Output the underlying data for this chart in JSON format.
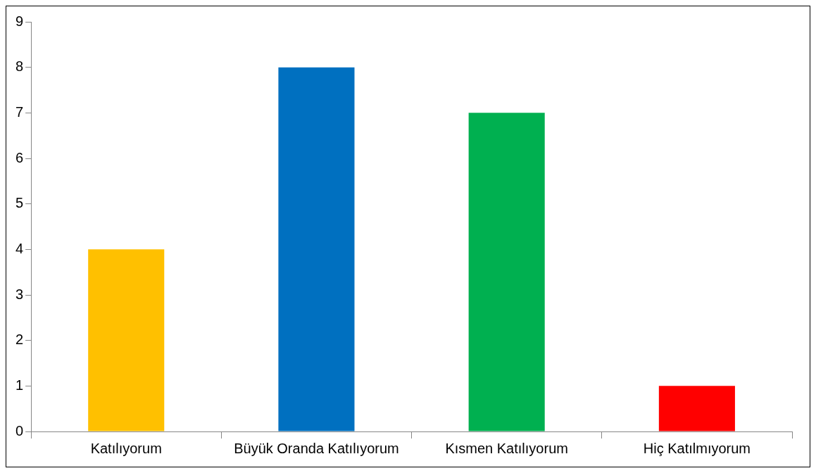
{
  "chart_data": {
    "type": "bar",
    "categories": [
      "Katılıyorum",
      "Büyük Oranda Katılıyorum",
      "Kısmen Katılıyorum",
      "Hiç Katılmıyorum"
    ],
    "values": [
      4,
      8,
      7,
      1
    ],
    "colors": [
      "#ffc000",
      "#0070c0",
      "#00b050",
      "#ff0000"
    ],
    "ylim": [
      0,
      9
    ],
    "yticks": [
      0,
      1,
      2,
      3,
      4,
      5,
      6,
      7,
      8,
      9
    ],
    "grid": false,
    "legend": false
  }
}
